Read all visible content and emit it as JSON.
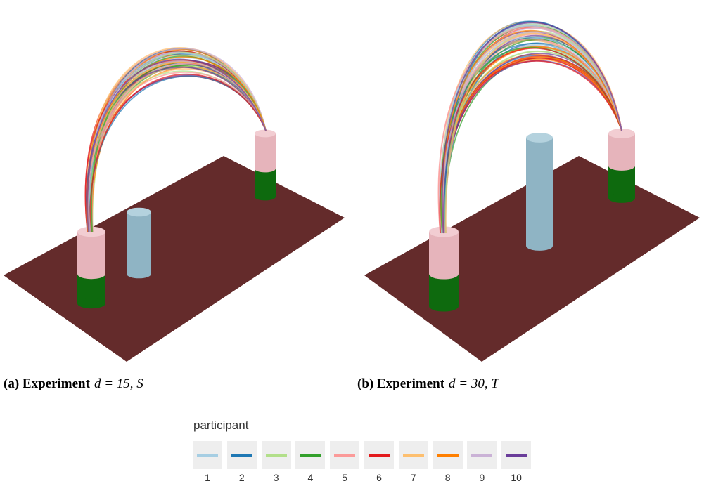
{
  "panels": [
    {
      "label": "(a)",
      "text": "Experiment",
      "math": "d = 15, S"
    },
    {
      "label": "(b)",
      "text": "Experiment",
      "math": "d = 30, T"
    }
  ],
  "legend": {
    "title": "participant",
    "entries": [
      {
        "label": "1",
        "color": "#a6cee3"
      },
      {
        "label": "2",
        "color": "#1f78b4"
      },
      {
        "label": "3",
        "color": "#b2df8a"
      },
      {
        "label": "4",
        "color": "#33a02c"
      },
      {
        "label": "5",
        "color": "#fb9a99"
      },
      {
        "label": "6",
        "color": "#e31a1c"
      },
      {
        "label": "7",
        "color": "#fdbf6f"
      },
      {
        "label": "8",
        "color": "#ff7f00"
      },
      {
        "label": "9",
        "color": "#cab2d6"
      },
      {
        "label": "10",
        "color": "#6a3d9a"
      }
    ]
  }
}
